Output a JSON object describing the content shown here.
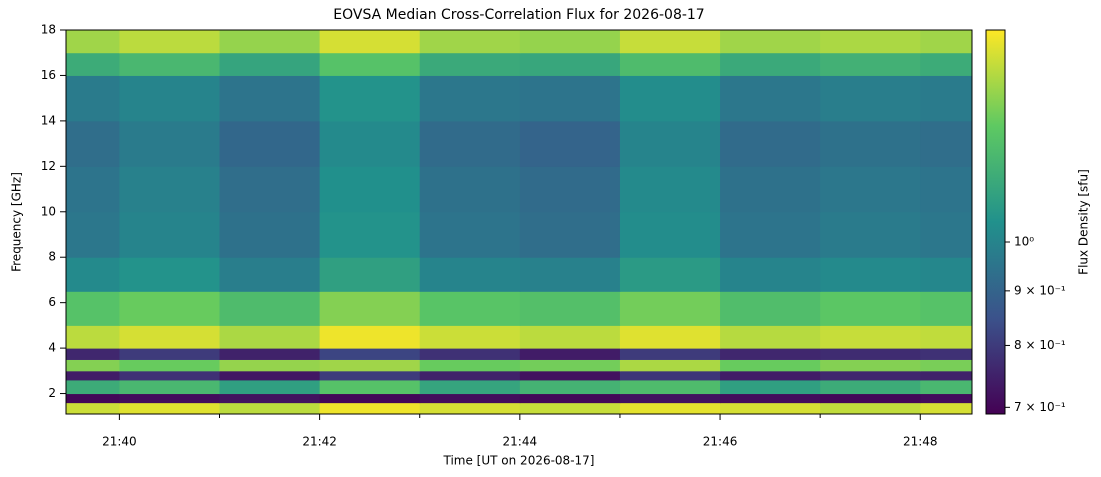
{
  "chart_data": {
    "type": "heatmap",
    "title": "EOVSA Median Cross-Correlation Flux for 2026-08-17",
    "xlabel": "Time [UT on 2026-08-17]",
    "ylabel": "Frequency [GHz]",
    "colorbar_label": "Flux Density [sfu]",
    "colormap": "viridis",
    "color_scale": "log",
    "xlim": [
      "21:39:28",
      "21:48:31"
    ],
    "xticks": [
      "21:40",
      "21:42",
      "21:44",
      "21:46",
      "21:48"
    ],
    "xminorticks": [
      "21:41",
      "21:43",
      "21:45",
      "21:47"
    ],
    "ylim": [
      1.1,
      18
    ],
    "yticks": [
      2,
      4,
      6,
      8,
      10,
      12,
      14,
      16,
      18
    ],
    "clim": [
      0.69,
      1.58
    ],
    "cticks": [
      {
        "value": 0.7,
        "label": "7 × 10⁻¹"
      },
      {
        "value": 0.8,
        "label": "8 × 10⁻¹"
      },
      {
        "value": 0.9,
        "label": "9 × 10⁻¹"
      },
      {
        "value": 1,
        "label": "10⁰"
      }
    ],
    "x_edges": [
      "21:39:28",
      "21:40",
      "21:41",
      "21:42",
      "21:43",
      "21:44",
      "21:45",
      "21:46",
      "21:47",
      "21:48",
      "21:48:31"
    ],
    "y_edges": [
      1.1,
      1.6,
      2.0,
      2.6,
      3.0,
      3.5,
      4.0,
      5.0,
      6.5,
      8,
      10,
      12,
      14,
      16,
      17,
      18
    ],
    "values": [
      [
        1.48,
        1.52,
        1.45,
        1.55,
        1.5,
        1.47,
        1.53,
        1.5,
        1.46,
        1.5
      ],
      [
        0.7,
        0.71,
        0.72,
        0.7,
        0.71,
        0.7,
        0.72,
        0.71,
        0.7,
        0.71
      ],
      [
        1.15,
        1.2,
        1.1,
        1.25,
        1.12,
        1.18,
        1.22,
        1.1,
        1.15,
        1.2
      ],
      [
        0.74,
        0.78,
        0.73,
        0.8,
        0.75,
        0.72,
        0.79,
        0.74,
        0.76,
        0.75
      ],
      [
        1.35,
        1.3,
        1.38,
        1.4,
        1.3,
        1.32,
        1.42,
        1.3,
        1.35,
        1.33
      ],
      [
        0.76,
        0.8,
        0.75,
        0.82,
        0.78,
        0.74,
        0.8,
        0.76,
        0.77,
        0.78
      ],
      [
        1.45,
        1.5,
        1.42,
        1.55,
        1.48,
        1.45,
        1.52,
        1.44,
        1.47,
        1.46
      ],
      [
        1.25,
        1.3,
        1.22,
        1.35,
        1.26,
        1.24,
        1.32,
        1.23,
        1.27,
        1.25
      ],
      [
        1.02,
        1.05,
        0.98,
        1.1,
        1.0,
        0.99,
        1.08,
        1.0,
        1.02,
        1.01
      ],
      [
        0.96,
        1.0,
        0.94,
        1.05,
        0.95,
        0.93,
        1.03,
        0.95,
        0.97,
        0.96
      ],
      [
        0.95,
        0.99,
        0.93,
        1.04,
        0.94,
        0.92,
        1.02,
        0.94,
        0.96,
        0.95
      ],
      [
        0.93,
        0.97,
        0.91,
        1.02,
        0.92,
        0.9,
        1.0,
        0.92,
        0.94,
        0.93
      ],
      [
        0.97,
        1.0,
        0.95,
        1.05,
        0.96,
        0.95,
        1.03,
        0.96,
        0.98,
        0.97
      ],
      [
        1.15,
        1.2,
        1.12,
        1.25,
        1.14,
        1.13,
        1.22,
        1.14,
        1.17,
        1.15
      ],
      [
        1.4,
        1.45,
        1.38,
        1.5,
        1.4,
        1.38,
        1.47,
        1.4,
        1.42,
        1.4
      ]
    ]
  }
}
